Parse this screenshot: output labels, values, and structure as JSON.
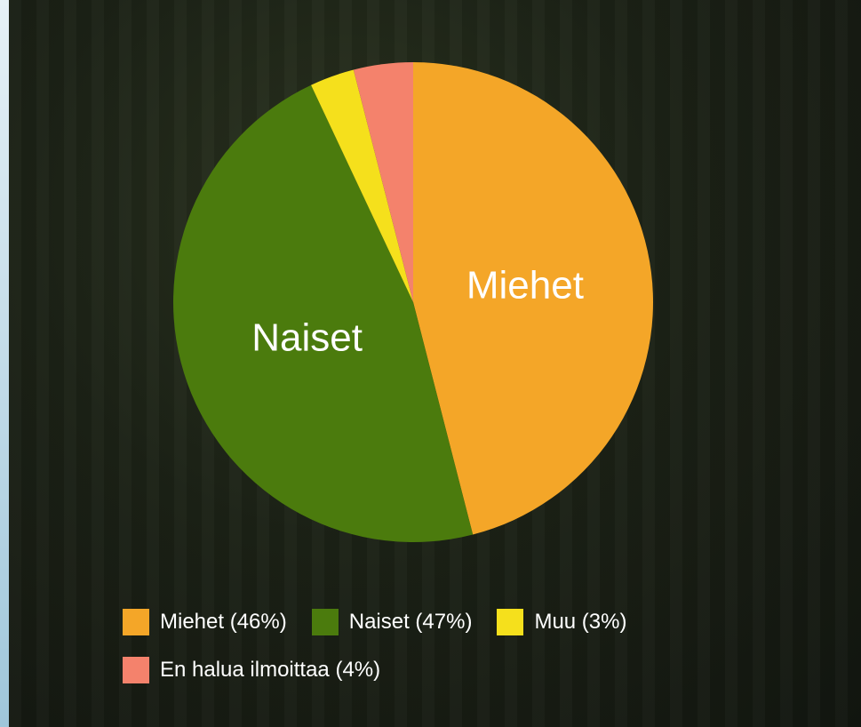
{
  "chart_data": {
    "type": "pie",
    "slice_labels": [
      "Miehet",
      "Naiset",
      null,
      null
    ],
    "legend_labels": [
      "Miehet (46%)",
      "Naiset (47%)",
      "Muu (3%)",
      "En halua ilmoittaa (4%)"
    ],
    "values": [
      46,
      47,
      3,
      4
    ],
    "colors": [
      "#f4a628",
      "#4b7b0d",
      "#f5e01c",
      "#f4826c"
    ],
    "start_angle": 0,
    "direction": "clockwise"
  }
}
